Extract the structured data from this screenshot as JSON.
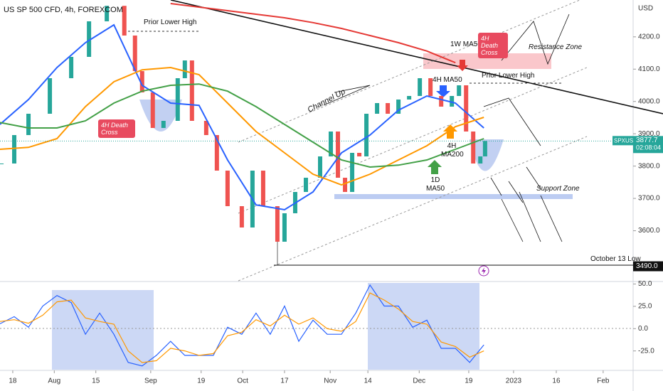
{
  "chart_data": {
    "type": "line",
    "title": "US SP 500 CFD, 4h, FOREXCOM",
    "currency": "USD",
    "grid": false,
    "xlim": [
      -4.3,
      209.1
    ],
    "xticks": [
      {
        "value": 0,
        "label": "18"
      },
      {
        "value": 14,
        "label": "Aug"
      },
      {
        "value": 28,
        "label": "15"
      },
      {
        "value": 46.5,
        "label": "Sep"
      },
      {
        "value": 63.5,
        "label": "19"
      },
      {
        "value": 77.5,
        "label": "Oct"
      },
      {
        "value": 91.6,
        "label": "17"
      },
      {
        "value": 107,
        "label": "Nov"
      },
      {
        "value": 119.7,
        "label": "14"
      },
      {
        "value": 137,
        "label": "Dec"
      },
      {
        "value": 153.7,
        "label": "19"
      },
      {
        "value": 168.8,
        "label": "2023"
      },
      {
        "value": 183.2,
        "label": "16"
      },
      {
        "value": 199,
        "label": "Feb"
      }
    ],
    "ylim": [
      3445,
      4314
    ],
    "yticks": [
      {
        "value": 3600,
        "label": "3600.0"
      },
      {
        "value": 3700,
        "label": "3700.0"
      },
      {
        "value": 3800,
        "label": "3800.0"
      },
      {
        "value": 3900,
        "label": "3900.0"
      },
      {
        "value": 4000,
        "label": "4000.0"
      },
      {
        "value": 4100,
        "label": "4100.0"
      },
      {
        "value": 4200,
        "label": "4200.0"
      }
    ],
    "series": [
      {
        "style": "candles",
        "up_color": "#26a69a",
        "down_color": "#ef5350",
        "x": [
          -3.8,
          0.5,
          5.3,
          12.5,
          19.7,
          25.7,
          31.7,
          37.6,
          41.2,
          43.6,
          47.2,
          50.8,
          55.6,
          58.0,
          60.4,
          65.2,
          68.8,
          72.4,
          77.2,
          80.8,
          84.4,
          89.2,
          91.6,
          95.2,
          98.8,
          103.6,
          107.2,
          109.6,
          112.0,
          114.4,
          116.8,
          119.2,
          122.8,
          126.4,
          130.0,
          133.6,
          137.2,
          140.8,
          144.4,
          148.0,
          150.4,
          152.8,
          155.2,
          157.6,
          159.2
        ],
        "values": [
          3808,
          3896,
          3962,
          4072,
          4138,
          4248,
          4296,
          4204,
          4094,
          4028,
          3918,
          3940,
          4072,
          4127,
          3940,
          3896,
          3786,
          3676,
          3610,
          3786,
          3676,
          3566,
          3654,
          3720,
          3764,
          3830,
          3907,
          3764,
          3720,
          3841,
          3830,
          3962,
          3995,
          3962,
          4006,
          4017,
          4072,
          4017,
          3984,
          4017,
          4050,
          3907,
          3808,
          3830,
          3877.7
        ]
      },
      {
        "color": "#2962ff",
        "x": [
          -4.3,
          5.3,
          14.9,
          24.5,
          34.1,
          43.6,
          53.2,
          62.8,
          72.4,
          82.0,
          91.6,
          101.2,
          110.8,
          120.4,
          130.0,
          139.6,
          149.2,
          158.8
        ],
        "values": [
          3929,
          4006,
          4105,
          4182,
          4237,
          4050,
          3995,
          3988,
          3819,
          3680,
          3665,
          3720,
          3841,
          3896,
          3973,
          4017,
          3995,
          3918
        ]
      },
      {
        "color": "#ff9800",
        "x": [
          -4.3,
          5.3,
          14.9,
          24.5,
          34.1,
          43.6,
          53.2,
          62.8,
          72.4,
          82.0,
          91.6,
          101.2,
          110.8,
          120.4,
          130.0,
          139.6,
          149.2,
          158.8
        ],
        "values": [
          3852,
          3858,
          3885,
          3984,
          4061,
          4098,
          4105,
          4083,
          3995,
          3907,
          3841,
          3775,
          3742,
          3775,
          3819,
          3863,
          3922,
          3951
        ]
      },
      {
        "color": "#43a047",
        "x": [
          -4.3,
          5.3,
          14.9,
          24.5,
          34.1,
          43.6,
          53.2,
          62.8,
          72.4,
          82.0,
          91.6,
          101.2,
          110.8,
          120.4,
          130.0,
          139.6,
          149.2,
          158.8
        ],
        "values": [
          3935,
          3918,
          3918,
          3940,
          3995,
          4032,
          4050,
          4054,
          4032,
          3984,
          3929,
          3874,
          3819,
          3797,
          3803,
          3819,
          3852,
          3885
        ]
      },
      {
        "color": "#e53935",
        "x": [
          -4.3,
          5.3,
          14.9,
          24.5,
          34.1,
          43.6,
          53.2,
          62.8,
          72.4,
          82.0,
          91.6,
          101.2,
          110.8,
          120.4,
          130.0,
          139.6,
          149.2,
          158.8
        ],
        "values": [
          null,
          null,
          null,
          null,
          null,
          null,
          4303,
          4292,
          4281,
          4270,
          4259,
          4244,
          4226,
          4204,
          4182,
          4156,
          4120,
          null
        ]
      }
    ],
    "price_tag": {
      "symbol": "SPXUSD",
      "value": 3877.7,
      "countdown": "02:08:04",
      "color": "#26a69a"
    },
    "low_tag": {
      "value": 3490,
      "label": "3490.0",
      "text": "October 13 Low"
    },
    "annotations": [
      "Prior Lower High",
      "4H Death Cross",
      "Channel Up",
      "1W MA50",
      "4H MA50",
      "Prior Lower High",
      "4H Death Cross",
      "Resistance Zone",
      "4H MA200",
      "1D MA50",
      "Support Zone"
    ],
    "oscillator": {
      "ylim": [
        -46,
        52
      ],
      "yticks": [
        {
          "value": 50,
          "label": "50.0"
        },
        {
          "value": 25,
          "label": "25.0"
        },
        {
          "value": 0,
          "label": "0.0"
        },
        {
          "value": -25,
          "label": "-25.0"
        }
      ],
      "series": [
        {
          "color": "#2962ff",
          "x": [
            -4.3,
            0.5,
            5.3,
            10.1,
            14.9,
            19.7,
            24.5,
            29.3,
            34.1,
            38.9,
            43.6,
            48.4,
            53.2,
            58.0,
            62.8,
            67.6,
            72.4,
            77.2,
            82.0,
            86.8,
            91.6,
            96.4,
            101.2,
            106.0,
            110.8,
            115.6,
            120.4,
            125.2,
            130.0,
            134.8,
            139.6,
            144.4,
            149.2,
            154.0,
            158.8
          ],
          "values": [
            5.5,
            13.4,
            1.6,
            25.3,
            37.1,
            29.2,
            -6.3,
            17.4,
            -6.3,
            -37.9,
            -41.8,
            -30.0,
            -14.2,
            -30.0,
            -30.0,
            -30.0,
            1.6,
            -6.3,
            17.4,
            -6.3,
            25.3,
            -14.2,
            9.5,
            -6.3,
            -6.3,
            17.4,
            48.9,
            25.3,
            25.3,
            1.6,
            9.5,
            -22.1,
            -22.1,
            -37.9,
            -18.2
          ]
        },
        {
          "color": "#ff9800",
          "x": [
            -4.3,
            0.5,
            5.3,
            10.1,
            14.9,
            19.7,
            24.5,
            29.3,
            34.1,
            38.9,
            43.6,
            48.4,
            53.2,
            58.0,
            62.8,
            67.6,
            72.4,
            77.2,
            82.0,
            86.8,
            91.6,
            96.4,
            101.2,
            106.0,
            110.8,
            115.6,
            120.4,
            125.2,
            130.0,
            134.8,
            139.6,
            144.4,
            149.2,
            154.0,
            158.8
          ],
          "values": [
            8,
            10,
            6,
            15,
            30,
            32,
            12,
            8,
            5,
            -25,
            -38,
            -36,
            -22,
            -25,
            -30,
            -28,
            -8,
            -4,
            10,
            3,
            15,
            5,
            12,
            0,
            -3,
            8,
            40,
            32,
            22,
            8,
            5,
            -15,
            -20,
            -32,
            -25
          ]
        }
      ]
    }
  }
}
